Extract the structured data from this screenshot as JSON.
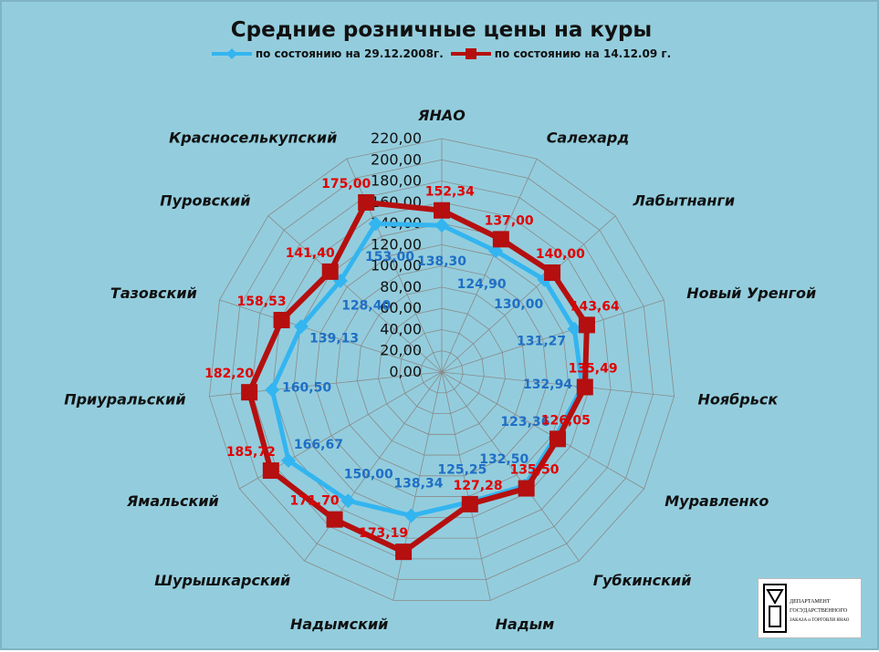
{
  "chart_data": {
    "type": "radar",
    "title": "Средние розничные цены  на куры",
    "categories": [
      "ЯНАО",
      "Салехард",
      "Лабытнанги",
      "Новый Уренгой",
      "Ноябрьск",
      "Муравленко",
      "Губкинский",
      "Надым",
      "Надымский",
      "Шурышкарский",
      "Ямальский",
      "Приуральский",
      "Тазовский",
      "Пуровский",
      "Красноселькупский"
    ],
    "series": [
      {
        "name": "по состоянию на 29.12.2008г.",
        "color": "#33B5F0",
        "marker": "diamond",
        "values": [
          138.3,
          124.9,
          130.0,
          131.27,
          132.94,
          123.36,
          132.5,
          125.25,
          138.34,
          150.0,
          166.67,
          160.5,
          139.13,
          128.4,
          153.0
        ],
        "labels": [
          "138,30",
          "124,90",
          "130,00",
          "131,27",
          "132,94",
          "123,36",
          "132,50",
          "125,25",
          "138,34",
          "150,00",
          "166,67",
          "160,50",
          "139,13",
          "128,40",
          "153,00"
        ]
      },
      {
        "name": "по состоянию на 14.12.09 г.",
        "color": "#B50F0F",
        "marker": "square",
        "values": [
          152.34,
          137.0,
          140.0,
          143.64,
          135.49,
          126.05,
          135.5,
          127.28,
          173.19,
          171.7,
          185.72,
          182.2,
          158.53,
          141.4,
          175.0
        ],
        "labels": [
          "152,34",
          "137,00",
          "140,00",
          "143,64",
          "135,49",
          "126,05",
          "135,50",
          "127,28",
          "173,19",
          "171,70",
          "185,72",
          "182,20",
          "158,53",
          "141,40",
          "175,00"
        ]
      }
    ],
    "rlim": [
      0,
      220
    ],
    "ticks": [
      "0,00",
      "20,00",
      "40,00",
      "60,00",
      "80,00",
      "100,00",
      "120,00",
      "140,00",
      "160,00",
      "180,00",
      "200,00",
      "220,00"
    ],
    "grid": true,
    "legend_position": "top"
  },
  "logo": {
    "text_line1": "ДЕПАРТАМЕНТ",
    "text_line2": "ГОСУДАРСТВЕННОГО",
    "text_line3": "ЗАКАЗА и ТОРГОВЛИ ЯНАО"
  }
}
